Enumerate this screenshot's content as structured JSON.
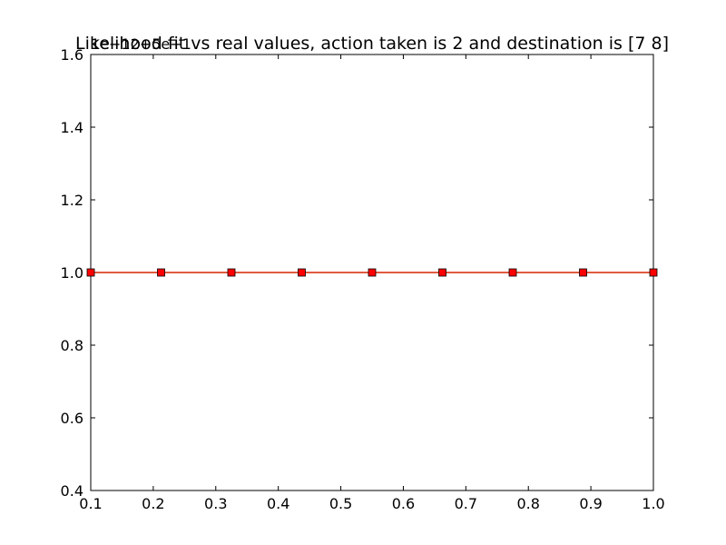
{
  "chart_data": {
    "type": "line",
    "title": "Likelihood fit vs real values, action taken is 2 and destination is [7 8]",
    "offset_text": "1e−12+5e−1",
    "xlabel": "",
    "ylabel": "",
    "xlim": [
      0.1,
      1.0
    ],
    "ylim": [
      0.4,
      1.6
    ],
    "x_ticks": [
      "0.1",
      "0.2",
      "0.3",
      "0.4",
      "0.5",
      "0.6",
      "0.7",
      "0.8",
      "0.9",
      "1.0"
    ],
    "y_ticks": [
      "0.4",
      "0.6",
      "0.8",
      "1.0",
      "1.2",
      "1.4",
      "1.6"
    ],
    "grid": false,
    "series": [
      {
        "color": "#ff0000",
        "line_color": "#d62700",
        "marker": "square",
        "x": [
          0.1,
          0.2125,
          0.325,
          0.4375,
          0.55,
          0.6625,
          0.775,
          0.8875,
          1.0
        ],
        "y": [
          1.0,
          1.0,
          1.0,
          1.0,
          1.0,
          1.0,
          1.0,
          1.0,
          1.0
        ]
      }
    ]
  }
}
